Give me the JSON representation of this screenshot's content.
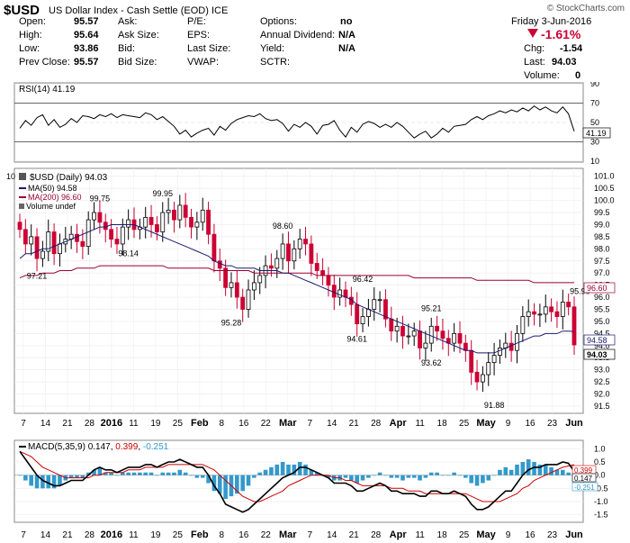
{
  "header": {
    "ticker": "$USD",
    "name": "US Dollar Index - Cash Settle (EOD)",
    "exchange": "ICE",
    "watermark": "© StockCharts.com",
    "date": "Friday 3-Jun-2016",
    "change_pct": "-1.61%",
    "quote": {
      "open_label": "Open:",
      "open": "95.57",
      "high_label": "High:",
      "high": "95.64",
      "low_label": "Low:",
      "low": "93.86",
      "prevclose_label": "Prev Close:",
      "prevclose": "95.57",
      "ask_label": "Ask:",
      "ask": "",
      "asksize_label": "Ask Size:",
      "asksize": "",
      "bid_label": "Bid:",
      "bid": "",
      "bidsize_label": "Bid Size:",
      "bidsize": "",
      "pe_label": "P/E:",
      "pe": "",
      "eps_label": "EPS:",
      "eps": "",
      "lastsize_label": "Last Size:",
      "lastsize": "",
      "vwap_label": "VWAP:",
      "vwap": "",
      "options_label": "Options:",
      "options": "no",
      "dividend_label": "Annual Dividend:",
      "dividend": "N/A",
      "yield_label": "Yield:",
      "yield": "N/A",
      "sctr_label": "SCTR:",
      "sctr": "",
      "chg_label": "Chg:",
      "chg": "-1.54",
      "last_label": "Last:",
      "last": "94.03",
      "volume_label": "Volume:",
      "volume": "0"
    },
    "colors": {
      "up": "#000000",
      "down": "#cc0033",
      "ma50": "#1a1a6e",
      "ma200": "#990033",
      "macd_hist": "#3399cc",
      "macd_signal": "#cc0000",
      "accent_change": "#cc0033"
    }
  },
  "chart_data": [
    {
      "type": "line",
      "title": "RSI(14) 41.19",
      "ylim": [
        10,
        90
      ],
      "y_ticks": [
        "90",
        "70",
        "50",
        "30",
        "10"
      ],
      "last_value_label": "41.19",
      "series": [
        {
          "name": "RSI(14)",
          "values": [
            44,
            52,
            47,
            55,
            58,
            47,
            53,
            45,
            48,
            54,
            50,
            57,
            56,
            54,
            58,
            56,
            59,
            55,
            58,
            57,
            56,
            55,
            60,
            58,
            53,
            56,
            51,
            46,
            38,
            42,
            35,
            39,
            42,
            44,
            37,
            46,
            42,
            49,
            53,
            55,
            57,
            56,
            59,
            54,
            52,
            53,
            49,
            41,
            48,
            45,
            50,
            46,
            38,
            47,
            48,
            52,
            42,
            35,
            45,
            40,
            48,
            51,
            49,
            45,
            48,
            45,
            50,
            46,
            40,
            34,
            38,
            41,
            34,
            38,
            44,
            40,
            46,
            47,
            48,
            53,
            56,
            53,
            57,
            59,
            62,
            60,
            63,
            61,
            65,
            62,
            67,
            63,
            66,
            62,
            60,
            66,
            59,
            41
          ]
        }
      ]
    },
    {
      "type": "candlestick",
      "title": "$USD (Daily) 94.03",
      "legend": [
        "MA(50) 94.58",
        "MA(200) 96.60",
        "Volume undef"
      ],
      "ylim": [
        91.5,
        101.0
      ],
      "y_ticks": [
        "101.0",
        "100.5",
        "100.0",
        "99.5",
        "99.0",
        "98.5",
        "98.0",
        "97.5",
        "97.0",
        "96.5",
        "96.0",
        "95.5",
        "95.0",
        "94.5",
        "94.0",
        "93.5",
        "93.0",
        "92.5",
        "92.0",
        "91.5"
      ],
      "x_tick_labels": [
        "7",
        "14",
        "21",
        "28",
        "2016",
        "11",
        "19",
        "25",
        "Feb",
        "8",
        "16",
        "22",
        "Mar",
        "7",
        "14",
        "21",
        "28",
        "Apr",
        "11",
        "18",
        "25",
        "May",
        "9",
        "16",
        "23",
        "Jun"
      ],
      "tag_ma200": "96.60",
      "tag_ma50": "94.58",
      "tag_last": "94.03",
      "annotations": [
        {
          "text": "99.75",
          "x": 14,
          "y": 99.75
        },
        {
          "text": "99.95",
          "x": 25,
          "y": 99.95
        },
        {
          "text": "98.14",
          "x": 19,
          "y": 98.14
        },
        {
          "text": "97.21",
          "x": 3,
          "y": 97.21
        },
        {
          "text": "98.60",
          "x": 46,
          "y": 98.6
        },
        {
          "text": "95.28",
          "x": 37,
          "y": 95.28
        },
        {
          "text": "96.42",
          "x": 60,
          "y": 96.42
        },
        {
          "text": "94.61",
          "x": 59,
          "y": 94.61
        },
        {
          "text": "95.21",
          "x": 72,
          "y": 95.21
        },
        {
          "text": "93.62",
          "x": 72,
          "y": 93.62
        },
        {
          "text": "91.88",
          "x": 83,
          "y": 91.88
        },
        {
          "text": "95.90",
          "x": 98,
          "y": 95.9
        }
      ],
      "close": [
        98.8,
        98.2,
        98.5,
        97.6,
        97.9,
        98.7,
        97.8,
        98.2,
        98.4,
        98.6,
        98.3,
        98.1,
        99.2,
        99.5,
        99.1,
        98.8,
        98.4,
        98.2,
        98.9,
        99.2,
        98.8,
        98.9,
        99.3,
        99.0,
        98.7,
        99.5,
        99.6,
        99.2,
        99.8,
        99.3,
        98.9,
        99.1,
        99.6,
        98.6,
        97.5,
        97.2,
        96.4,
        96.6,
        96.0,
        95.5,
        96.3,
        96.6,
        96.9,
        97.3,
        97.2,
        97.6,
        98.2,
        97.5,
        98.0,
        98.4,
        98.2,
        97.4,
        97.1,
        96.9,
        96.5,
        96.0,
        96.3,
        96.0,
        95.7,
        94.9,
        95.2,
        95.5,
        95.9,
        95.9,
        95.1,
        94.6,
        94.8,
        94.4,
        94.4,
        94.6,
        93.9,
        94.1,
        94.8,
        94.6,
        94.3,
        94.1,
        94.5,
        94.1,
        93.8,
        92.9,
        92.5,
        92.8,
        93.3,
        93.6,
        93.9,
        94.1,
        93.8,
        94.5,
        95.2,
        95.4,
        95.3,
        95.3,
        95.6,
        95.4,
        95.2,
        95.8,
        95.6,
        94.03
      ],
      "ma50": [
        97.6,
        97.8,
        97.8,
        97.9,
        98.0,
        98.0,
        98.1,
        98.2,
        98.3,
        98.4,
        98.5,
        98.6,
        98.7,
        98.8,
        98.9,
        98.9,
        99.0,
        99.0,
        99.0,
        99.0,
        99.0,
        98.9,
        98.8,
        98.7,
        98.6,
        98.5,
        98.4,
        98.3,
        98.2,
        98.1,
        98.0,
        97.9,
        97.8,
        97.7,
        97.5,
        97.4,
        97.3,
        97.3,
        97.2,
        97.2,
        97.2,
        97.2,
        97.1,
        97.1,
        97.1,
        97.1,
        97.0,
        97.0,
        96.9,
        96.8,
        96.7,
        96.6,
        96.5,
        96.4,
        96.3,
        96.2,
        96.1,
        96.0,
        95.9,
        95.7,
        95.6,
        95.5,
        95.4,
        95.3,
        95.2,
        95.1,
        95.0,
        94.9,
        94.8,
        94.7,
        94.6,
        94.5,
        94.4,
        94.3,
        94.2,
        94.1,
        94.0,
        93.9,
        93.8,
        93.8,
        93.7,
        93.7,
        93.7,
        93.7,
        93.8,
        93.9,
        94.0,
        94.1,
        94.2,
        94.3,
        94.4,
        94.4,
        94.5,
        94.5,
        94.5,
        94.6,
        94.6,
        94.58
      ],
      "ma200": [
        96.8,
        96.9,
        96.9,
        96.9,
        97.0,
        97.0,
        97.0,
        97.1,
        97.1,
        97.1,
        97.2,
        97.2,
        97.2,
        97.2,
        97.3,
        97.3,
        97.3,
        97.3,
        97.3,
        97.3,
        97.3,
        97.3,
        97.3,
        97.3,
        97.3,
        97.3,
        97.2,
        97.2,
        97.2,
        97.2,
        97.2,
        97.2,
        97.2,
        97.2,
        97.1,
        97.1,
        97.1,
        97.1,
        97.1,
        97.1,
        97.1,
        97.0,
        97.0,
        97.0,
        97.0,
        97.0,
        97.0,
        97.0,
        97.0,
        97.0,
        97.0,
        97.0,
        96.9,
        96.9,
        96.9,
        96.9,
        96.9,
        96.9,
        96.9,
        96.9,
        96.9,
        96.9,
        96.9,
        96.9,
        96.9,
        96.9,
        96.9,
        96.9,
        96.9,
        96.8,
        96.8,
        96.8,
        96.8,
        96.8,
        96.8,
        96.8,
        96.8,
        96.8,
        96.8,
        96.8,
        96.7,
        96.7,
        96.7,
        96.7,
        96.7,
        96.7,
        96.7,
        96.7,
        96.7,
        96.7,
        96.6,
        96.6,
        96.6,
        96.6,
        96.6,
        96.6,
        96.6,
        96.6
      ]
    },
    {
      "type": "bar+line",
      "title": "MACD(5,35,9)",
      "macd_value": "0.147",
      "signal_value": "0.399",
      "hist_value": "-0.251",
      "ylim": [
        -1.75,
        1.25
      ],
      "y_ticks": [
        "1.0",
        "0.5",
        "0.0",
        "-0.5",
        "-1.0",
        "-1.5"
      ],
      "tag_signal": "0.399",
      "tag_macd": "0.147",
      "tag_hist": "-0.251",
      "x_tick_labels": [
        "7",
        "14",
        "21",
        "28",
        "2016",
        "11",
        "19",
        "25",
        "Feb",
        "8",
        "16",
        "22",
        "Mar",
        "7",
        "14",
        "21",
        "28",
        "Apr",
        "11",
        "18",
        "25",
        "May",
        "9",
        "16",
        "23",
        "Jun"
      ],
      "macd": [
        0.9,
        0.6,
        0.3,
        0.0,
        -0.2,
        -0.3,
        -0.4,
        -0.4,
        -0.3,
        -0.2,
        -0.2,
        -0.2,
        0.0,
        0.2,
        0.3,
        0.2,
        0.2,
        0.1,
        0.2,
        0.3,
        0.3,
        0.3,
        0.4,
        0.4,
        0.3,
        0.4,
        0.5,
        0.5,
        0.6,
        0.5,
        0.4,
        0.3,
        0.3,
        0.0,
        -0.4,
        -0.7,
        -1.1,
        -1.2,
        -1.3,
        -1.4,
        -1.3,
        -1.1,
        -0.9,
        -0.7,
        -0.5,
        -0.3,
        -0.1,
        0.0,
        0.1,
        0.3,
        0.3,
        0.2,
        0.1,
        0.0,
        -0.1,
        -0.3,
        -0.3,
        -0.3,
        -0.4,
        -0.6,
        -0.6,
        -0.5,
        -0.4,
        -0.3,
        -0.4,
        -0.6,
        -0.6,
        -0.7,
        -0.7,
        -0.7,
        -0.8,
        -0.8,
        -0.6,
        -0.6,
        -0.7,
        -0.7,
        -0.6,
        -0.7,
        -0.8,
        -1.1,
        -1.3,
        -1.3,
        -1.2,
        -1.0,
        -0.8,
        -0.6,
        -0.6,
        -0.3,
        0.0,
        0.2,
        0.3,
        0.3,
        0.4,
        0.4,
        0.4,
        0.5,
        0.45,
        0.147
      ],
      "signal": [
        0.9,
        0.8,
        0.7,
        0.5,
        0.3,
        0.2,
        0.1,
        0.0,
        -0.1,
        -0.1,
        -0.1,
        -0.1,
        -0.1,
        0.0,
        0.0,
        0.1,
        0.1,
        0.1,
        0.1,
        0.2,
        0.2,
        0.2,
        0.3,
        0.3,
        0.3,
        0.3,
        0.4,
        0.4,
        0.4,
        0.4,
        0.4,
        0.4,
        0.4,
        0.3,
        0.2,
        0.0,
        -0.2,
        -0.4,
        -0.6,
        -0.8,
        -0.9,
        -1.0,
        -1.0,
        -0.9,
        -0.8,
        -0.7,
        -0.6,
        -0.4,
        -0.3,
        -0.2,
        -0.1,
        0.0,
        0.0,
        0.0,
        0.0,
        -0.1,
        -0.1,
        -0.2,
        -0.2,
        -0.3,
        -0.4,
        -0.4,
        -0.4,
        -0.4,
        -0.4,
        -0.5,
        -0.5,
        -0.5,
        -0.6,
        -0.6,
        -0.6,
        -0.7,
        -0.7,
        -0.7,
        -0.7,
        -0.7,
        -0.7,
        -0.7,
        -0.7,
        -0.8,
        -0.9,
        -1.0,
        -1.0,
        -1.0,
        -1.0,
        -0.9,
        -0.8,
        -0.7,
        -0.5,
        -0.4,
        -0.2,
        -0.1,
        0.0,
        0.1,
        0.2,
        0.3,
        0.35,
        0.399
      ]
    }
  ]
}
